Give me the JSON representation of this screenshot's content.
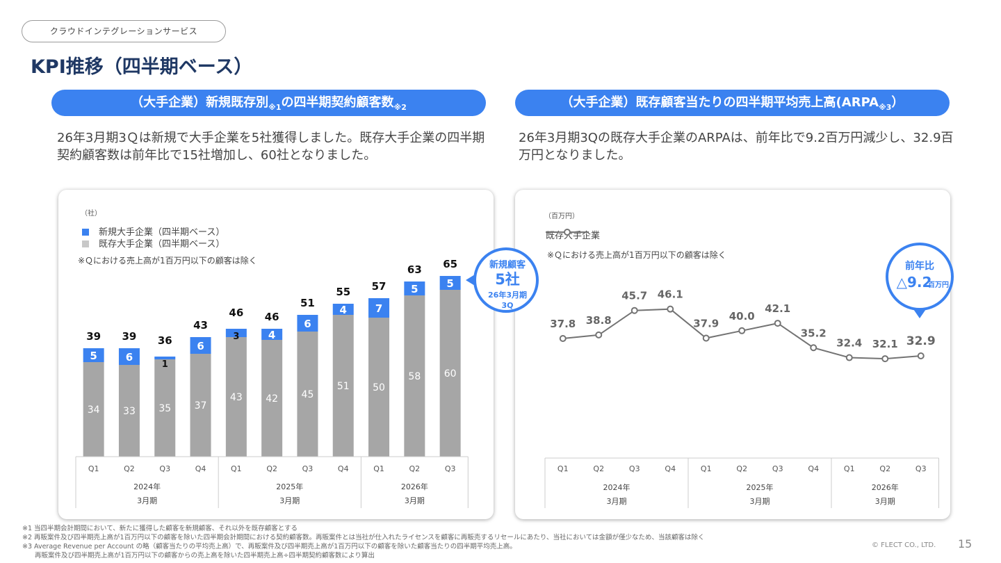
{
  "header": {
    "category": "クラウドインテグレーションサービス",
    "title": "KPI推移（四半期ベース）"
  },
  "left": {
    "pill": {
      "text_a": "（大手企業）新規既存別",
      "note_a": "※1",
      "text_b": "の四半期契約顧客数",
      "note_b": "※2"
    },
    "lead": "26年3月期3Ｑは新規で大手企業を5社獲得しました。既存大手企業の四半期契約顧客数は前年比で15社増加し、60社となりました。",
    "unit": "（社）",
    "legend_new": "新規大手企業（四半期ベース）",
    "legend_existing": "既存大手企業（四半期ベース）",
    "note": "※Ｑにおける売上高が1百万円以下の顧客は除く",
    "callout": {
      "line1": "新規顧客",
      "line2": "5社",
      "line3": "26年3月期",
      "line4": "3Q"
    }
  },
  "right": {
    "pill": {
      "text_a": "（大手企業）既存顧客当たりの四半期平均売上高(ARPA",
      "note_a": "※3",
      "text_b": "）"
    },
    "lead": "26年3月期3Qの既存大手企業のARPAは、前年比で9.2百万円減少し、32.9百万円となりました。",
    "unit": "（百万円）",
    "legend": "既存大手企業",
    "note": "※Ｑにおける売上高が1百万円以下の顧客は除く",
    "callout": {
      "line1": "前年比",
      "line2": "△9.2",
      "line3": "百万円"
    }
  },
  "colors": {
    "new": "#3b82f0",
    "existing": "#a6a6a6",
    "line": "#737373",
    "title": "#1f3864"
  },
  "chart_data": [
    {
      "type": "bar",
      "stacked": true,
      "title": "（大手企業）新規既存別の四半期契約顧客数",
      "ylabel": "（社）",
      "categories": [
        "Q1",
        "Q2",
        "Q3",
        "Q4",
        "Q1",
        "Q2",
        "Q3",
        "Q4",
        "Q1",
        "Q2",
        "Q3"
      ],
      "groups": [
        {
          "label": "2024年",
          "sub": "3月期",
          "count": 4
        },
        {
          "label": "2025年",
          "sub": "3月期",
          "count": 4
        },
        {
          "label": "2026年",
          "sub": "3月期",
          "count": 3
        }
      ],
      "series": [
        {
          "name": "既存大手企業（四半期ベース）",
          "values": [
            34,
            33,
            35,
            37,
            43,
            42,
            45,
            51,
            50,
            58,
            60
          ]
        },
        {
          "name": "新規大手企業（四半期ベース）",
          "values": [
            5,
            6,
            1,
            6,
            3,
            4,
            6,
            4,
            7,
            5,
            5
          ]
        }
      ],
      "totals": [
        39,
        39,
        36,
        43,
        46,
        46,
        51,
        55,
        57,
        63,
        65
      ],
      "ylim": [
        0,
        75
      ]
    },
    {
      "type": "line",
      "title": "（大手企業）既存顧客当たりの四半期平均売上高(ARPA)",
      "ylabel": "（百万円）",
      "categories": [
        "Q1",
        "Q2",
        "Q3",
        "Q4",
        "Q1",
        "Q2",
        "Q3",
        "Q4",
        "Q1",
        "Q2",
        "Q3"
      ],
      "groups": [
        {
          "label": "2024年",
          "sub": "3月期",
          "count": 4
        },
        {
          "label": "2025年",
          "sub": "3月期",
          "count": 4
        },
        {
          "label": "2026年",
          "sub": "3月期",
          "count": 3
        }
      ],
      "series": [
        {
          "name": "既存大手企業",
          "values": [
            37.8,
            38.8,
            45.7,
            46.1,
            37.9,
            40.0,
            42.1,
            35.2,
            32.4,
            32.1,
            32.9
          ]
        }
      ],
      "labels": [
        "37.8",
        "38.8",
        "45.7",
        "46.1",
        "37.9",
        "40.0",
        "42.1",
        "35.2",
        "32.4",
        "32.1",
        "32.9"
      ],
      "ylim": [
        0,
        60
      ]
    }
  ],
  "footnotes": [
    "※1 当四半期会計期間において、新たに獲得した顧客を新規顧客、それ以外を既存顧客とする",
    "※2 再販案件及び四半期売上高が1百万円以下の顧客を除いた四半期会計期間における契約顧客数。再販案件とは当社が仕入れたライセンスを顧客に再販売するリセールにあたり、当社においては金額が僅少なため、当該顧客は除く",
    "※3 Average Revenue per Account の略（顧客当たりの平均売上高）で、再販案件及び四半期売上高が1百万円以下の顧客を除いた顧客当たりの四半期平均売上高。",
    "再販案件及び四半期売上高が1百万円以下の顧客からの売上高を除いた四半期売上高÷四半期契約顧客数により算出"
  ],
  "copyright": "© FLECT CO., LTD.",
  "page_number": "15"
}
